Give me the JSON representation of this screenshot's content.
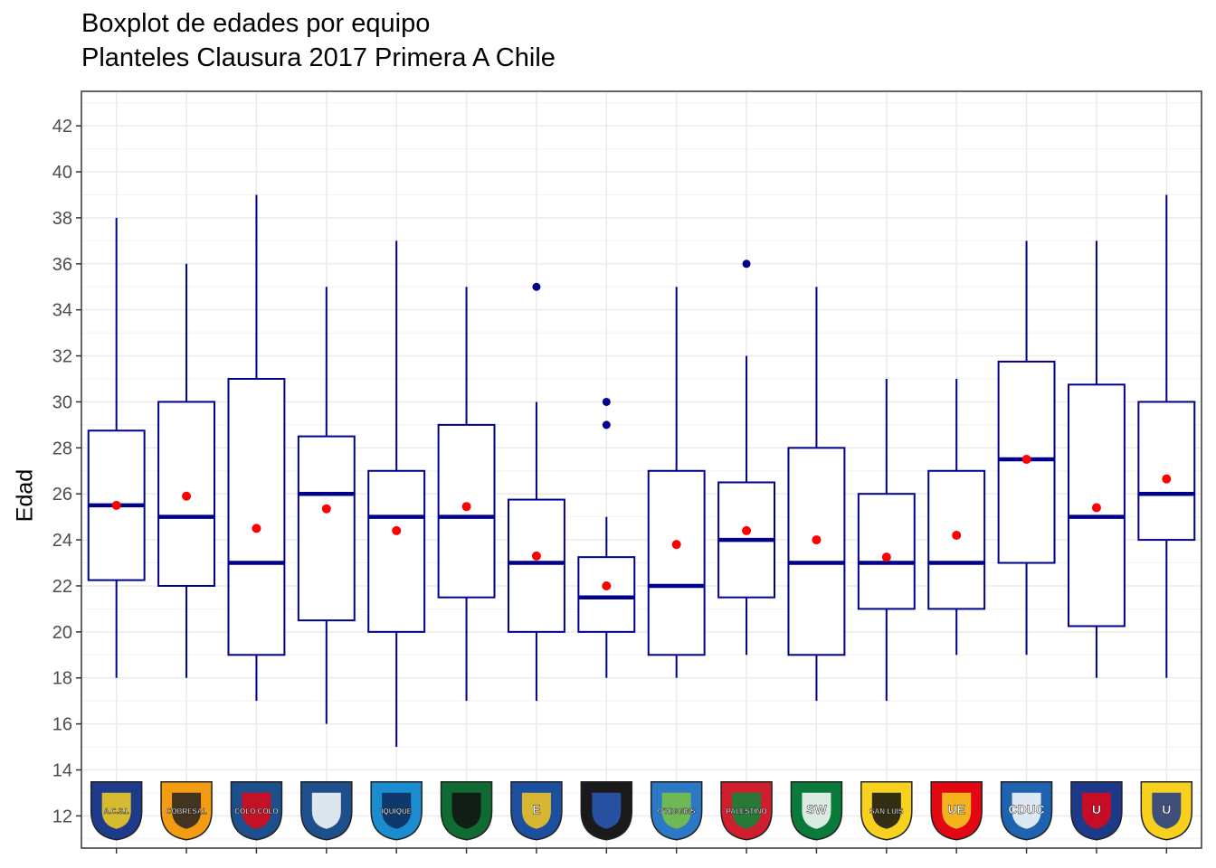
{
  "chart_data": {
    "type": "boxplot",
    "title": "Boxplot de edades por equipo",
    "subtitle": "Planteles Clausura 2017 Primera A Chile",
    "xlabel": "",
    "ylabel": "Edad",
    "ylim": [
      10.6,
      43.5
    ],
    "yticks": [
      12,
      14,
      16,
      18,
      20,
      22,
      24,
      26,
      28,
      30,
      32,
      34,
      36,
      38,
      40,
      42
    ],
    "grid": true,
    "colors": {
      "box": "#00008b",
      "mean": "#ff0000",
      "outlier": "#00008b"
    },
    "categories": [
      "A.C.S.I.",
      "Cobresal",
      "Colo-Colo",
      "Antofagasta",
      "Iquique",
      "Temuco",
      "Everton",
      "Huachipato",
      "O'Higgins",
      "Palestino",
      "Wanderers",
      "San Luis",
      "U. Española",
      "U. Católica",
      "U. de Chile",
      "U. de Concepción"
    ],
    "logos": [
      {
        "icon": "audax-italiano-crest",
        "text": "A.C.S.I."
      },
      {
        "icon": "cobresal-crest",
        "text": "COBRESAL"
      },
      {
        "icon": "colo-colo-crest",
        "text": "COLO COLO"
      },
      {
        "icon": "antofagasta-crest",
        "text": ""
      },
      {
        "icon": "iquique-crest",
        "text": "IQUIQUE"
      },
      {
        "icon": "temuco-crest",
        "text": ""
      },
      {
        "icon": "everton-crest",
        "text": "E"
      },
      {
        "icon": "huachipato-crest",
        "text": ""
      },
      {
        "icon": "ohiggins-crest",
        "text": "O'HIGGINS"
      },
      {
        "icon": "palestino-crest",
        "text": "PALESTINO"
      },
      {
        "icon": "wanderers-crest",
        "text": "SW"
      },
      {
        "icon": "san-luis-crest",
        "text": "SAN LUIS"
      },
      {
        "icon": "union-espanola-crest",
        "text": "UE"
      },
      {
        "icon": "catolica-crest",
        "text": "CDUC"
      },
      {
        "icon": "u-de-chile-crest",
        "text": "U"
      },
      {
        "icon": "u-de-concepcion-crest",
        "text": "U"
      }
    ],
    "boxes": [
      {
        "min": 18,
        "q1": 22.25,
        "median": 25.5,
        "q3": 28.75,
        "max": 38,
        "mean": 25.5,
        "outliers": []
      },
      {
        "min": 18,
        "q1": 22,
        "median": 25,
        "q3": 30,
        "max": 36,
        "mean": 25.9,
        "outliers": []
      },
      {
        "min": 17,
        "q1": 19,
        "median": 23,
        "q3": 31,
        "max": 39,
        "mean": 24.5,
        "outliers": []
      },
      {
        "min": 16,
        "q1": 20.5,
        "median": 26,
        "q3": 28.5,
        "max": 35,
        "mean": 25.35,
        "outliers": []
      },
      {
        "min": 15,
        "q1": 20,
        "median": 25,
        "q3": 27,
        "max": 37,
        "mean": 24.4,
        "outliers": []
      },
      {
        "min": 17,
        "q1": 21.5,
        "median": 25,
        "q3": 29,
        "max": 35,
        "mean": 25.45,
        "outliers": []
      },
      {
        "min": 17,
        "q1": 20,
        "median": 23,
        "q3": 25.75,
        "max": 30,
        "mean": 23.3,
        "outliers": [
          35
        ]
      },
      {
        "min": 18,
        "q1": 20,
        "median": 21.5,
        "q3": 23.25,
        "max": 25,
        "mean": 22,
        "outliers": [
          29,
          30
        ]
      },
      {
        "min": 18,
        "q1": 19,
        "median": 22,
        "q3": 27,
        "max": 35,
        "mean": 23.8,
        "outliers": []
      },
      {
        "min": 19,
        "q1": 21.5,
        "median": 24,
        "q3": 26.5,
        "max": 32,
        "mean": 24.4,
        "outliers": [
          36
        ]
      },
      {
        "min": 17,
        "q1": 19,
        "median": 23,
        "q3": 28,
        "max": 35,
        "mean": 24,
        "outliers": []
      },
      {
        "min": 17,
        "q1": 21,
        "median": 23,
        "q3": 26,
        "max": 31,
        "mean": 23.25,
        "outliers": []
      },
      {
        "min": 19,
        "q1": 21,
        "median": 23,
        "q3": 27,
        "max": 31,
        "mean": 24.2,
        "outliers": []
      },
      {
        "min": 19,
        "q1": 23,
        "median": 27.5,
        "q3": 31.75,
        "max": 37,
        "mean": 27.5,
        "outliers": []
      },
      {
        "min": 18,
        "q1": 20.25,
        "median": 25,
        "q3": 30.75,
        "max": 37,
        "mean": 25.4,
        "outliers": []
      },
      {
        "min": 18,
        "q1": 24,
        "median": 26,
        "q3": 30,
        "max": 39,
        "mean": 26.65,
        "outliers": []
      }
    ]
  }
}
